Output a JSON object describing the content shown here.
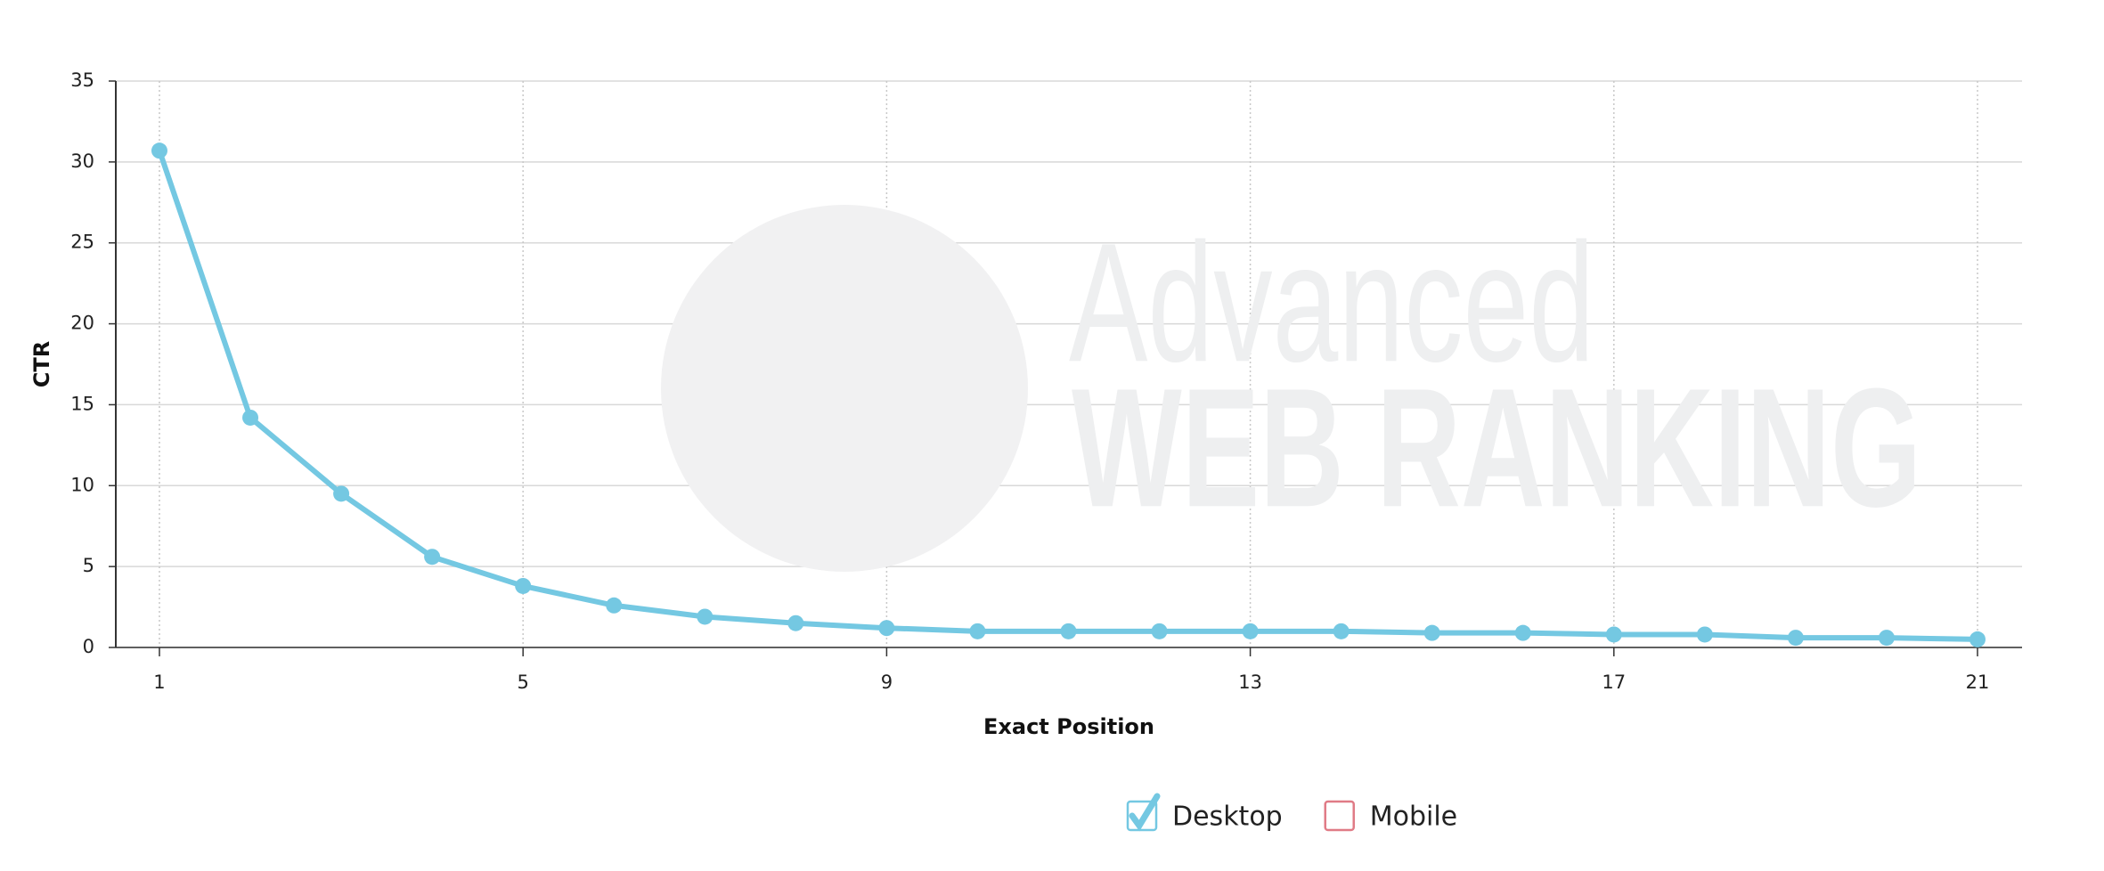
{
  "chart_data": {
    "type": "line",
    "x_label": "Exact Position",
    "y_label": "CTR",
    "x": [
      1,
      2,
      3,
      4,
      5,
      6,
      7,
      8,
      9,
      10,
      11,
      12,
      13,
      14,
      15,
      16,
      17,
      18,
      19,
      20,
      21
    ],
    "series": [
      {
        "name": "Desktop",
        "color": "#74c8e2",
        "visible": true,
        "values": [
          30.7,
          14.2,
          9.5,
          5.6,
          3.8,
          2.6,
          1.9,
          1.5,
          1.2,
          1.0,
          1.0,
          1.0,
          1.0,
          1.0,
          0.9,
          0.9,
          0.8,
          0.8,
          0.6,
          0.6,
          0.5
        ]
      },
      {
        "name": "Mobile",
        "color": "#e07b86",
        "visible": false
      }
    ],
    "xlim": [
      0.52,
      21.49
    ],
    "ylim": [
      0,
      35
    ],
    "xticks": [
      1,
      5,
      9,
      13,
      17,
      21
    ],
    "yticks": [
      0,
      5,
      10,
      15,
      20,
      25,
      30,
      35
    ],
    "grid": true,
    "watermark": {
      "line1": "Advanced",
      "line2": "WEB RANKING"
    }
  }
}
